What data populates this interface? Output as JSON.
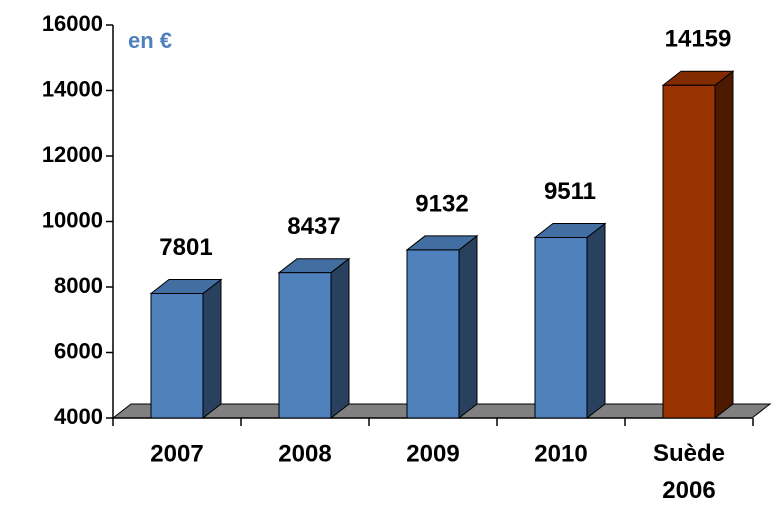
{
  "chart_data": {
    "type": "bar3d",
    "annotation": "en €",
    "categories": [
      "2007",
      "2008",
      "2009",
      "2010",
      "Suède 2006"
    ],
    "values": [
      7801,
      8437,
      9132,
      9511,
      14159
    ],
    "colors": [
      "#4f81bd",
      "#4f81bd",
      "#4f81bd",
      "#4f81bd",
      "#993300"
    ],
    "ylim": [
      4000,
      16000
    ],
    "yticks": [
      4000,
      6000,
      8000,
      10000,
      12000,
      14000,
      16000
    ]
  }
}
